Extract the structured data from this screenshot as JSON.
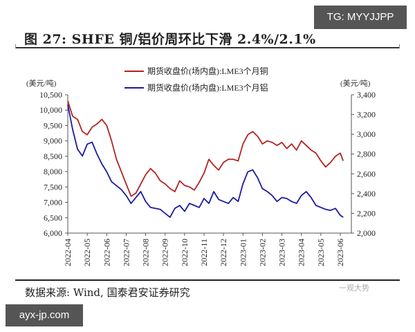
{
  "header": {
    "title": "图 27:  SHFE 铜/铝价周环比下滑 2.4%/2.1%",
    "watermark_badge": "TG: MYYJJPP"
  },
  "footer": {
    "source": "数据来源: Wind, 国泰君安证券研究",
    "watermark_badge": "ayx-jp.com",
    "faint_watermark": "一观大势"
  },
  "colors": {
    "copper": "#b22222",
    "aluminum": "#1a1aa0",
    "axis": "#555555"
  },
  "chart_data": {
    "type": "line",
    "title": "SHFE 铜/铝价周环比下滑 2.4%/2.1%",
    "left_unit": "(美元/吨)",
    "right_unit": "(美元/吨)",
    "ylim_left": [
      6000,
      10500
    ],
    "ylim_right": [
      2000,
      3400
    ],
    "yticks_left": [
      "10,500",
      "10,000",
      "9,500",
      "9,000",
      "8,500",
      "8,000",
      "7,500",
      "7,000",
      "6,500",
      "6,000"
    ],
    "yticks_right": [
      "3,400",
      "3,200",
      "3,000",
      "2,800",
      "2,600",
      "2,400",
      "2,200",
      "2,000"
    ],
    "xticks": [
      "2022-04",
      "2022-05",
      "2022-06",
      "2022-07",
      "2022-08",
      "2022-09",
      "2022-10",
      "2022-11",
      "2022-12",
      "2023-01",
      "2023-02",
      "2023-03",
      "2023-04",
      "2023-05",
      "2023-06"
    ],
    "legend_position": "top",
    "grid": false,
    "series": [
      {
        "name": "期货收盘价(场内盘):LME3个月铜",
        "axis": "left",
        "x": [
          0,
          0.25,
          0.5,
          0.75,
          1.0,
          1.25,
          1.5,
          1.75,
          2.0,
          2.25,
          2.5,
          2.75,
          3.0,
          3.25,
          3.5,
          3.75,
          4.0,
          4.25,
          4.5,
          4.75,
          5.0,
          5.25,
          5.5,
          5.75,
          6.0,
          6.25,
          6.5,
          6.75,
          7.0,
          7.25,
          7.5,
          7.75,
          8.0,
          8.25,
          8.5,
          8.75,
          9.0,
          9.25,
          9.5,
          9.75,
          10.0,
          10.25,
          10.5,
          10.75,
          11.0,
          11.25,
          11.5,
          11.75,
          12.0,
          12.25,
          12.5,
          12.75,
          13.0,
          13.25,
          13.5,
          13.75,
          14.0,
          14.15
        ],
        "values": [
          10300,
          9800,
          9700,
          9300,
          9200,
          9450,
          9550,
          9700,
          9500,
          9000,
          8400,
          8000,
          7600,
          7200,
          7300,
          7600,
          7900,
          8100,
          7950,
          7700,
          7600,
          7450,
          7350,
          7700,
          7550,
          7500,
          7400,
          7650,
          7950,
          8400,
          8200,
          8050,
          8300,
          8400,
          8400,
          8350,
          8900,
          9200,
          9300,
          9150,
          8900,
          9000,
          8950,
          8850,
          8950,
          8750,
          8900,
          8700,
          9000,
          8850,
          8700,
          8600,
          8350,
          8150,
          8300,
          8500,
          8600,
          8350
        ],
        "color": "#b22222"
      },
      {
        "name": "期货收盘价(场内盘):LME3个月铝",
        "axis": "right",
        "x": [
          0,
          0.25,
          0.5,
          0.75,
          1.0,
          1.25,
          1.5,
          1.75,
          2.0,
          2.25,
          2.5,
          2.75,
          3.0,
          3.25,
          3.5,
          3.75,
          4.0,
          4.25,
          4.5,
          4.75,
          5.0,
          5.25,
          5.5,
          5.75,
          6.0,
          6.25,
          6.5,
          6.75,
          7.0,
          7.25,
          7.5,
          7.75,
          8.0,
          8.25,
          8.5,
          8.75,
          9.0,
          9.25,
          9.5,
          9.75,
          10.0,
          10.25,
          10.5,
          10.75,
          11.0,
          11.25,
          11.5,
          11.75,
          12.0,
          12.25,
          12.5,
          12.75,
          13.0,
          13.25,
          13.5,
          13.75,
          14.0,
          14.15
        ],
        "values": [
          3300,
          3050,
          2850,
          2780,
          2900,
          2920,
          2800,
          2700,
          2620,
          2520,
          2480,
          2440,
          2380,
          2300,
          2360,
          2420,
          2320,
          2260,
          2250,
          2240,
          2200,
          2160,
          2250,
          2280,
          2220,
          2300,
          2280,
          2260,
          2350,
          2300,
          2420,
          2340,
          2320,
          2300,
          2360,
          2320,
          2500,
          2620,
          2640,
          2560,
          2450,
          2420,
          2380,
          2320,
          2360,
          2350,
          2320,
          2300,
          2380,
          2420,
          2360,
          2280,
          2260,
          2240,
          2230,
          2250,
          2180,
          2160
        ],
        "color": "#1a1aa0"
      }
    ]
  }
}
